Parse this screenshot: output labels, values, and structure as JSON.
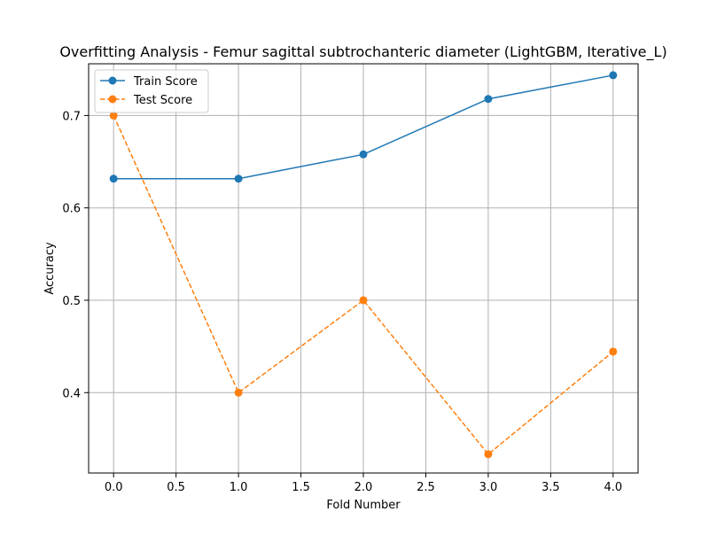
{
  "chart_data": {
    "type": "line",
    "title": "Overfitting Analysis - Femur sagittal subtrochanteric diameter (LightGBM, Iterative_L)",
    "xlabel": "Fold Number",
    "ylabel": "Accuracy",
    "x": [
      0,
      1,
      2,
      3,
      4
    ],
    "xlim": [
      -0.2,
      4.2
    ],
    "ylim": [
      0.313,
      0.756
    ],
    "xticks": [
      0.0,
      0.5,
      1.0,
      1.5,
      2.0,
      2.5,
      3.0,
      3.5,
      4.0
    ],
    "xtick_labels": [
      "0.0",
      "0.5",
      "1.0",
      "1.5",
      "2.0",
      "2.5",
      "3.0",
      "3.5",
      "4.0"
    ],
    "yticks": [
      0.4,
      0.5,
      0.6,
      0.7
    ],
    "ytick_labels": [
      "0.4",
      "0.5",
      "0.6",
      "0.7"
    ],
    "grid": true,
    "legend_position": "top-left",
    "series": [
      {
        "name": "Train Score",
        "values": [
          0.6316,
          0.6316,
          0.6579,
          0.7179,
          0.7436
        ],
        "color": "#1f77b4",
        "line_style": "solid",
        "marker": "circle"
      },
      {
        "name": "Test Score",
        "values": [
          0.7,
          0.4,
          0.5,
          0.3333,
          0.4444
        ],
        "color": "#ff7f0e",
        "line_style": "dashed",
        "marker": "circle"
      }
    ]
  }
}
